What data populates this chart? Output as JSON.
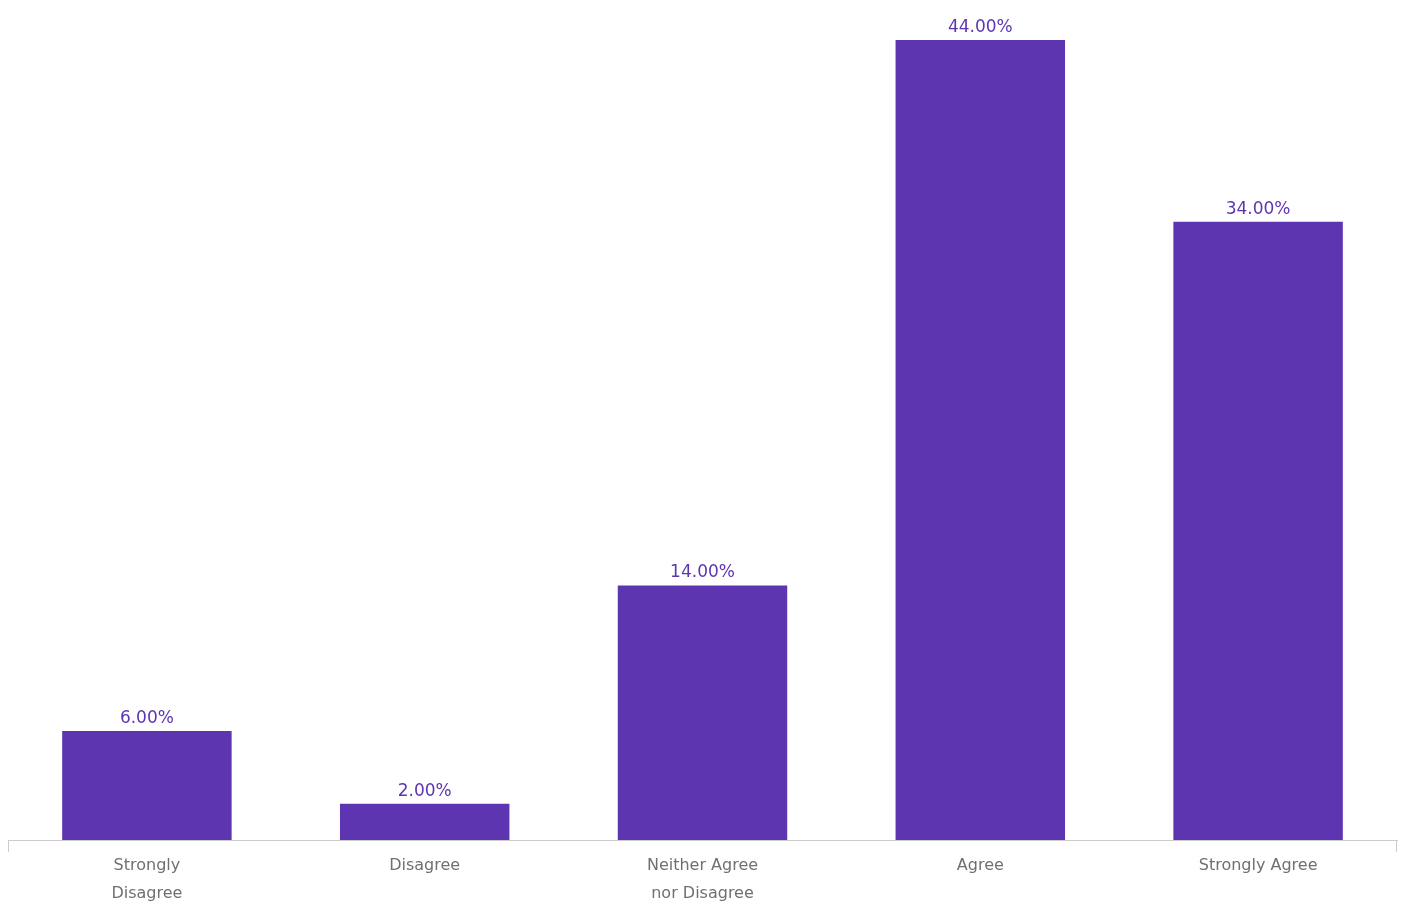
{
  "chart_data": {
    "type": "bar",
    "categories": [
      "Strongly Disagree",
      "Disagree",
      "Neither Agree nor Disagree",
      "Agree",
      "Strongly Agree"
    ],
    "values": [
      6,
      2,
      14,
      44,
      34
    ],
    "color": "#5e35b1",
    "value_labels": [
      "6.00%",
      "2.00%",
      "14.00%",
      "44.00%",
      "34.00%"
    ]
  }
}
